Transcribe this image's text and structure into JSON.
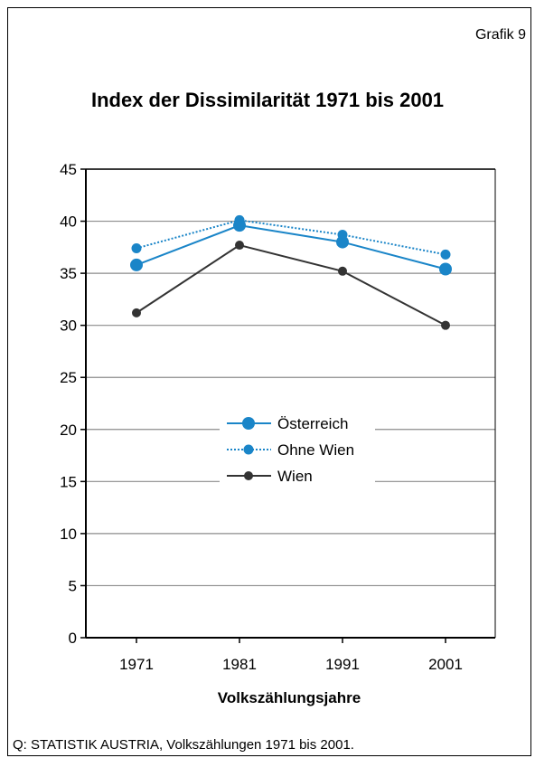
{
  "header": {
    "figure_label": "Grafik 9"
  },
  "footer": {
    "source": "Q: STATISTIK AUSTRIA, Volkszählungen 1971 bis 2001."
  },
  "chart_data": {
    "type": "line",
    "title": "Index der Dissimilarität 1971 bis 2001",
    "xlabel": "Volkszählungsjahre",
    "ylabel": "",
    "categories": [
      "1971",
      "1981",
      "1991",
      "2001"
    ],
    "ylim": [
      0,
      45
    ],
    "yticks": [
      0,
      5,
      10,
      15,
      20,
      25,
      30,
      35,
      40,
      45
    ],
    "grid": true,
    "legend_position": "center",
    "series": [
      {
        "name": "Österreich",
        "values": [
          35.8,
          39.6,
          38.0,
          35.4
        ],
        "color": "#1a85c8",
        "style": "solid"
      },
      {
        "name": "Ohne Wien",
        "values": [
          37.4,
          40.1,
          38.7,
          36.8
        ],
        "color": "#1a85c8",
        "style": "dotted"
      },
      {
        "name": "Wien",
        "values": [
          31.2,
          37.7,
          35.2,
          30.0
        ],
        "color": "#333333",
        "style": "solid"
      }
    ]
  }
}
